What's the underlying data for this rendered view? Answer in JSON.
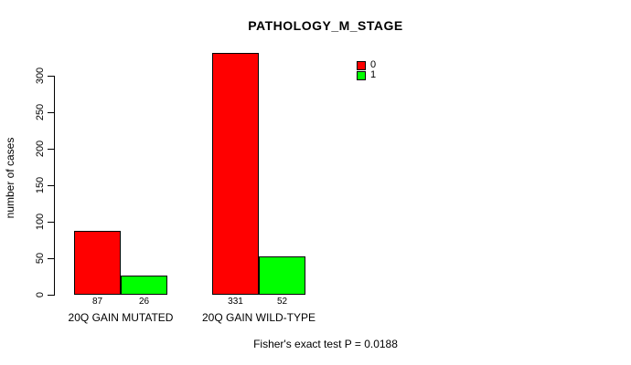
{
  "title": "PATHOLOGY_M_STAGE",
  "footer": "Fisher's exact test P = 0.0188",
  "colors": {
    "background": "#FFFFFF",
    "axis": "#000000",
    "bar_border": "#000000",
    "series0": "#FF0000",
    "series1": "#00FF00"
  },
  "legend": {
    "position": "top-right",
    "items": [
      {
        "label": "0",
        "color": "#FF0000"
      },
      {
        "label": "1",
        "color": "#00FF00"
      }
    ]
  },
  "chart_data": {
    "type": "bar",
    "title": "PATHOLOGY_M_STAGE",
    "xlabel": "",
    "ylabel": "number of cases",
    "ylim": [
      0,
      300
    ],
    "yticks": [
      0,
      50,
      100,
      150,
      200,
      250,
      300
    ],
    "grid": false,
    "legend_position": "top-right",
    "categories": [
      "20Q GAIN MUTATED",
      "20Q GAIN WILD-TYPE"
    ],
    "series": [
      {
        "name": "0",
        "color": "#FF0000",
        "values": [
          87,
          331
        ]
      },
      {
        "name": "1",
        "color": "#00FF00",
        "values": [
          26,
          52
        ]
      }
    ],
    "bar_value_labels": [
      [
        87,
        26
      ],
      [
        331,
        52
      ]
    ],
    "annotation": "Fisher's exact test P = 0.0188"
  }
}
